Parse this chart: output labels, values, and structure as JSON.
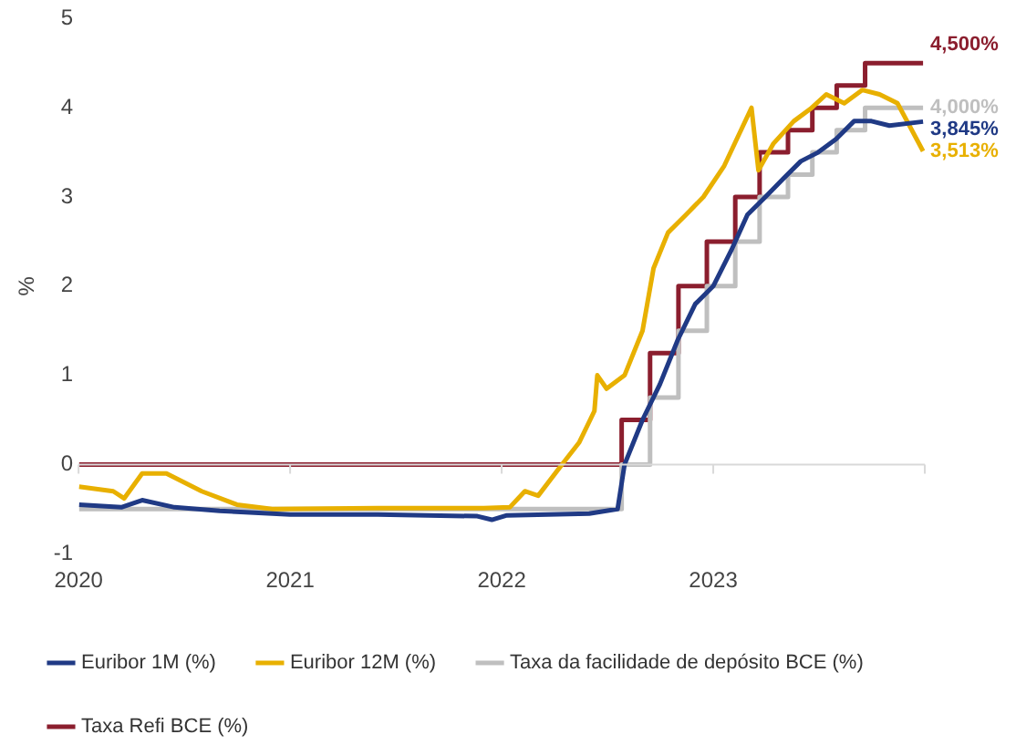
{
  "chart_data": {
    "type": "line",
    "ylabel": "%",
    "xlim": [
      "2020-01-01",
      "2024-01-01"
    ],
    "xticks": [
      {
        "value": "2020-01-01",
        "label": "2020"
      },
      {
        "value": "2021-01-01",
        "label": "2021"
      },
      {
        "value": "2022-01-01",
        "label": "2022"
      },
      {
        "value": "2023-01-01",
        "label": "2023"
      },
      {
        "value": "2024-01-01",
        "label": null
      }
    ],
    "ylim": [
      -1,
      5
    ],
    "yticks": [
      -1,
      0,
      1,
      2,
      3,
      4,
      5
    ],
    "grid": false,
    "ref_lines": [
      {
        "axis": "y",
        "value": 0,
        "color": "#d9d9d9"
      }
    ],
    "legend": "bottom",
    "marker": "none",
    "line_style": "solid",
    "series": [
      {
        "name": "Euribor 1M (%)",
        "color": "#203a85",
        "x": [
          "2020-01-02",
          "2020-03-15",
          "2020-04-20",
          "2020-06-15",
          "2020-09-01",
          "2021-01-01",
          "2021-06-01",
          "2021-11-20",
          "2021-12-15",
          "2022-01-10",
          "2022-06-01",
          "2022-07-20",
          "2022-08-01",
          "2022-09-01",
          "2022-10-01",
          "2022-11-01",
          "2022-12-01",
          "2023-01-01",
          "2023-02-01",
          "2023-03-01",
          "2023-04-01",
          "2023-05-01",
          "2023-06-01",
          "2023-07-01",
          "2023-08-01",
          "2023-09-01",
          "2023-10-01",
          "2023-11-01",
          "2023-12-29"
        ],
        "values": [
          -0.45,
          -0.48,
          -0.4,
          -0.48,
          -0.52,
          -0.56,
          -0.56,
          -0.58,
          -0.62,
          -0.57,
          -0.55,
          -0.5,
          0.0,
          0.5,
          0.9,
          1.4,
          1.8,
          2.0,
          2.4,
          2.8,
          3.0,
          3.2,
          3.4,
          3.5,
          3.65,
          3.85,
          3.85,
          3.8,
          3.845
        ]
      },
      {
        "name": "Euribor 12M (%)",
        "color": "#e8b000",
        "x": [
          "2020-01-02",
          "2020-03-01",
          "2020-03-20",
          "2020-04-20",
          "2020-06-01",
          "2020-08-01",
          "2020-10-01",
          "2020-12-01",
          "2021-06-01",
          "2021-12-01",
          "2022-01-15",
          "2022-02-10",
          "2022-03-05",
          "2022-04-15",
          "2022-05-15",
          "2022-06-10",
          "2022-06-15",
          "2022-07-01",
          "2022-08-01",
          "2022-09-01",
          "2022-09-20",
          "2022-10-15",
          "2022-11-15",
          "2022-12-15",
          "2023-01-20",
          "2023-03-08",
          "2023-03-20",
          "2023-04-15",
          "2023-05-20",
          "2023-06-20",
          "2023-07-15",
          "2023-08-15",
          "2023-09-15",
          "2023-10-15",
          "2023-11-15",
          "2023-12-29"
        ],
        "values": [
          -0.25,
          -0.3,
          -0.38,
          -0.1,
          -0.1,
          -0.3,
          -0.45,
          -0.5,
          -0.49,
          -0.49,
          -0.48,
          -0.3,
          -0.35,
          0.0,
          0.25,
          0.6,
          1.0,
          0.85,
          1.0,
          1.5,
          2.2,
          2.6,
          2.8,
          3.0,
          3.35,
          4.0,
          3.3,
          3.6,
          3.85,
          4.0,
          4.15,
          4.05,
          4.2,
          4.15,
          4.05,
          3.513
        ]
      },
      {
        "name": "Taxa da facilidade de depósito BCE (%)",
        "color": "#bfbfbf",
        "type": "step",
        "x": [
          "2020-01-02",
          "2022-07-27",
          "2022-09-14",
          "2022-11-02",
          "2022-12-21",
          "2023-02-08",
          "2023-03-22",
          "2023-05-10",
          "2023-06-21",
          "2023-08-02",
          "2023-09-20",
          "2023-12-29"
        ],
        "values": [
          -0.5,
          0.0,
          0.75,
          1.5,
          2.0,
          2.5,
          3.0,
          3.25,
          3.5,
          3.75,
          4.0,
          4.0
        ]
      },
      {
        "name": "Taxa Refi BCE (%)",
        "color": "#8b1e2e",
        "type": "step",
        "x": [
          "2020-01-02",
          "2022-07-27",
          "2022-09-14",
          "2022-11-02",
          "2022-12-21",
          "2023-02-08",
          "2023-03-22",
          "2023-05-10",
          "2023-06-21",
          "2023-08-02",
          "2023-09-20",
          "2023-12-29"
        ],
        "values": [
          0.0,
          0.5,
          1.25,
          2.0,
          2.5,
          3.0,
          3.5,
          3.75,
          4.0,
          4.25,
          4.5,
          4.5
        ]
      }
    ],
    "annotations": [
      {
        "text": "4,500%",
        "x": "2023-12-29",
        "y": 4.5
      },
      {
        "text": "4,000%",
        "x": "2023-12-29",
        "y": 4.0
      },
      {
        "text": "3,845%",
        "x": "2023-12-29",
        "y": 3.845
      },
      {
        "text": "3,513%",
        "x": "2023-12-29",
        "y": 3.513
      }
    ]
  }
}
